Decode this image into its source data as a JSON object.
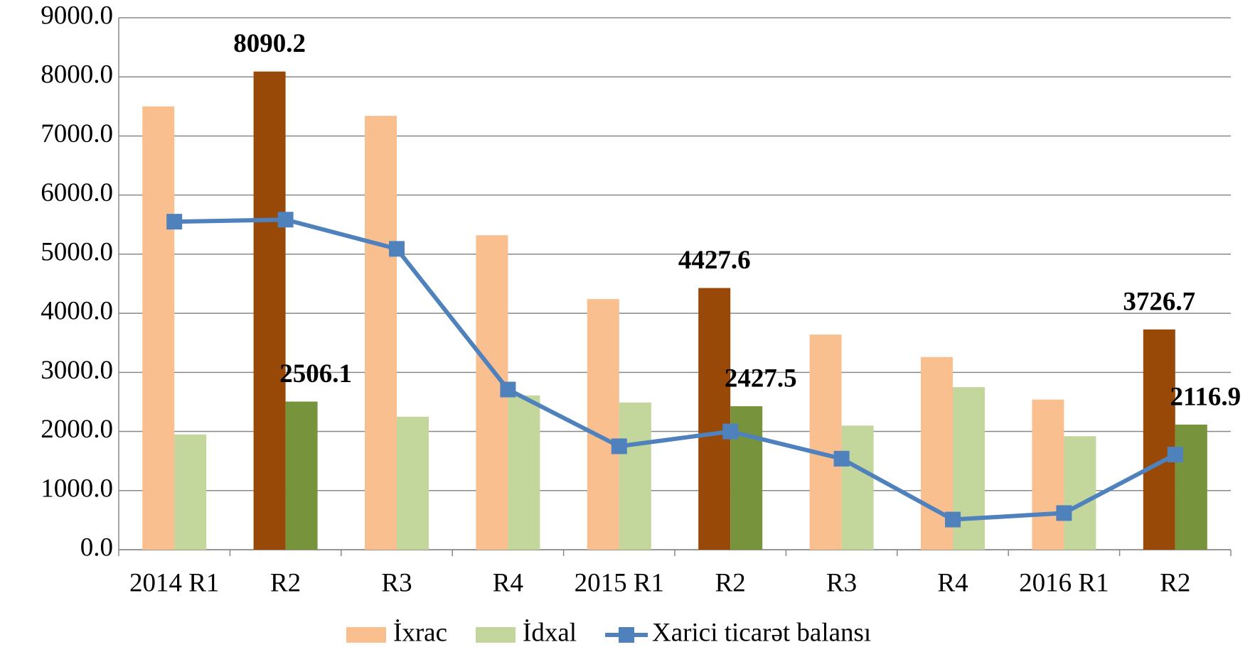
{
  "chart_data": {
    "type": "bar_line",
    "categories": [
      "2014 R1",
      "R2",
      "R3",
      "R4",
      "2015 R1",
      "R2",
      "R3",
      "R4",
      "2016 R1",
      "R2"
    ],
    "series": [
      {
        "name": "İxrac",
        "type": "bar",
        "color": "#f9bf8f",
        "colors": [
          "#f9bf8f",
          "#984807",
          "#f9bf8f",
          "#f9bf8f",
          "#f9bf8f",
          "#984807",
          "#f9bf8f",
          "#f9bf8f",
          "#f9bf8f",
          "#984807"
        ],
        "values": [
          7500,
          8090.2,
          7340,
          5320,
          4240,
          4427.6,
          3640,
          3260,
          2540,
          3726.7
        ],
        "value_labels": [
          null,
          "8090.2",
          null,
          null,
          null,
          "4427.6",
          null,
          null,
          null,
          "3726.7"
        ]
      },
      {
        "name": "İdxal",
        "type": "bar",
        "color": "#c3d69b",
        "colors": [
          "#c3d69b",
          "#77933c",
          "#c3d69b",
          "#c3d69b",
          "#c3d69b",
          "#77933c",
          "#c3d69b",
          "#c3d69b",
          "#c3d69b",
          "#77933c"
        ],
        "values": [
          1950,
          2506.1,
          2250,
          2610,
          2490,
          2427.5,
          2100,
          2750,
          1920,
          2116.9
        ],
        "value_labels": [
          null,
          "2506.1",
          null,
          null,
          null,
          "2427.5",
          null,
          null,
          null,
          "2116.9"
        ]
      },
      {
        "name": "Xarici ticarət balansı",
        "type": "line",
        "color": "#4f81bd",
        "values": [
          5550,
          5584.1,
          5090,
          2710,
          1750,
          2000.1,
          1540,
          510,
          620,
          1609.8
        ]
      }
    ],
    "ylim": [
      0,
      9000
    ],
    "yticks": [
      {
        "value": 0,
        "label": "0.0"
      },
      {
        "value": 1000,
        "label": "1000.0"
      },
      {
        "value": 2000,
        "label": "2000.0"
      },
      {
        "value": 3000,
        "label": "3000.0"
      },
      {
        "value": 4000,
        "label": "4000.0"
      },
      {
        "value": 5000,
        "label": "5000.0"
      },
      {
        "value": 6000,
        "label": "6000.0"
      },
      {
        "value": 7000,
        "label": "7000.0"
      },
      {
        "value": 8000,
        "label": "8000.0"
      },
      {
        "value": 9000,
        "label": "9000.0"
      }
    ],
    "grid": true,
    "legend": "bottom"
  }
}
